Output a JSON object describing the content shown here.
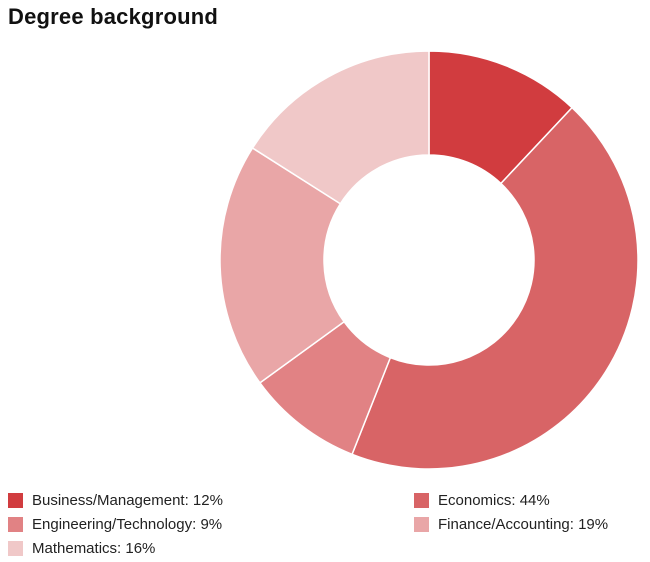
{
  "chart_data": {
    "type": "pie",
    "title": "Degree background",
    "donut": true,
    "legend_position": "bottom",
    "slices": [
      {
        "label": "Business/Management",
        "value": 12,
        "color": "#d13c3f"
      },
      {
        "label": "Economics",
        "value": 44,
        "color": "#d86466"
      },
      {
        "label": "Engineering/Technology",
        "value": 9,
        "color": "#e18284"
      },
      {
        "label": "Finance/Accounting",
        "value": 19,
        "color": "#e9a6a7"
      },
      {
        "label": "Mathematics",
        "value": 16,
        "color": "#f0c8c8"
      }
    ]
  }
}
